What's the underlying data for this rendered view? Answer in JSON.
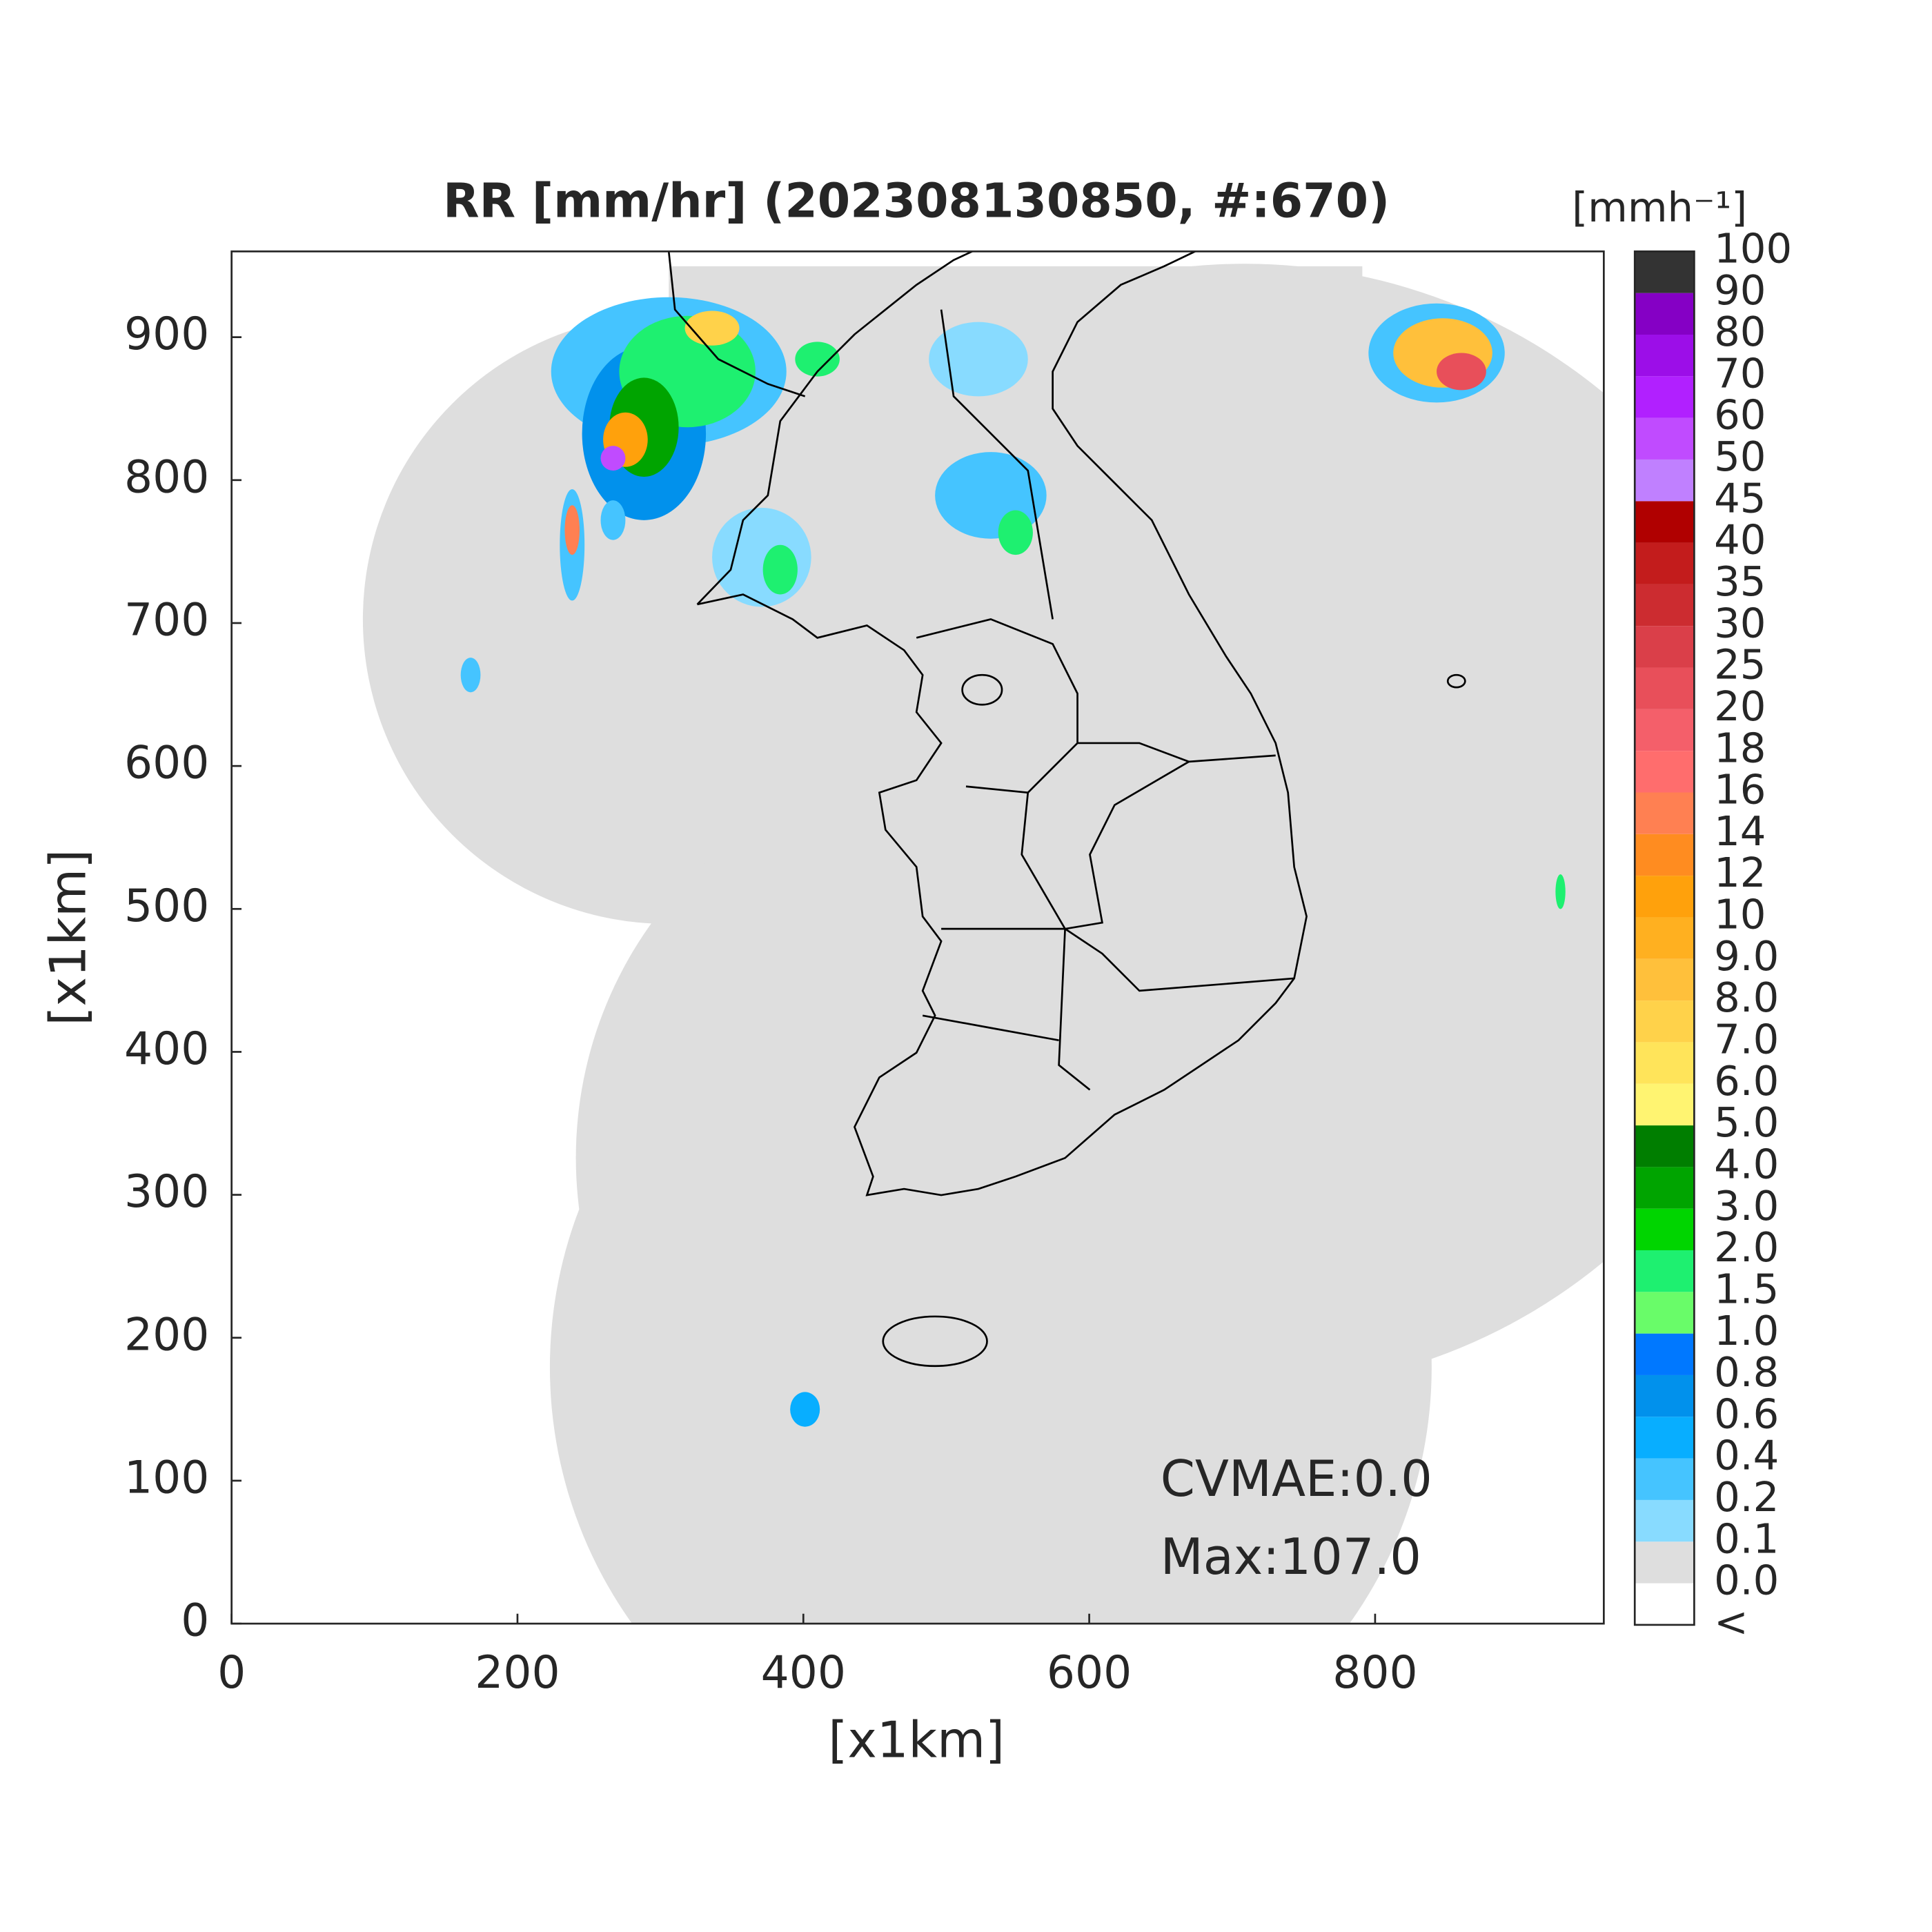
{
  "chart_data": {
    "type": "map",
    "title": "RR [mm/hr] (202308130850, #:670)",
    "xlabel": "[x1km]",
    "ylabel": "[x1km]",
    "xlim": [
      0,
      960
    ],
    "ylim": [
      0,
      960
    ],
    "xticks": [
      0,
      200,
      400,
      600,
      800
    ],
    "yticks": [
      0,
      100,
      200,
      300,
      400,
      500,
      600,
      700,
      800,
      900
    ],
    "annotations": [
      "CVMAE:0.0",
      "Max:107.0"
    ],
    "colorbar": {
      "title": "[mmh⁻¹]",
      "below_label": "<",
      "ticks": [
        {
          "value": 0,
          "label": "0.0"
        },
        {
          "value": 0.1,
          "label": "0.1"
        },
        {
          "value": 0.2,
          "label": "0.2"
        },
        {
          "value": 0.4,
          "label": "0.4"
        },
        {
          "value": 0.6,
          "label": "0.6"
        },
        {
          "value": 0.8,
          "label": "0.8"
        },
        {
          "value": 1,
          "label": "1.0"
        },
        {
          "value": 1.5,
          "label": "1.5"
        },
        {
          "value": 2,
          "label": "2.0"
        },
        {
          "value": 3,
          "label": "3.0"
        },
        {
          "value": 4,
          "label": "4.0"
        },
        {
          "value": 5,
          "label": "5.0"
        },
        {
          "value": 6,
          "label": "6.0"
        },
        {
          "value": 7,
          "label": "7.0"
        },
        {
          "value": 8,
          "label": "8.0"
        },
        {
          "value": 9,
          "label": "9.0"
        },
        10,
        12,
        14,
        16,
        18,
        20,
        25,
        30,
        35,
        40,
        45,
        50,
        60,
        70,
        80,
        90,
        100
      ],
      "colors": [
        "#ffffff",
        "#dedede",
        "#88dbff",
        "#45c4ff",
        "#08aeff",
        "#0191ec",
        "#0078ff",
        "#69fc69",
        "#1ef070",
        "#00d500",
        "#00a400",
        "#007e00",
        "#fff471",
        "#ffe45a",
        "#ffd24a",
        "#ffc03b",
        "#ffb020",
        "#ffa10c",
        "#ff8c20",
        "#ff8052",
        "#ff6d6d",
        "#f45f6a",
        "#e84f5a",
        "#da3f49",
        "#cc2c30",
        "#c31c1c",
        "#b00000",
        "#c080ff",
        "#c04bff",
        "#b120ff",
        "#9c0ee8",
        "#8500c5",
        "#333333"
      ]
    }
  }
}
